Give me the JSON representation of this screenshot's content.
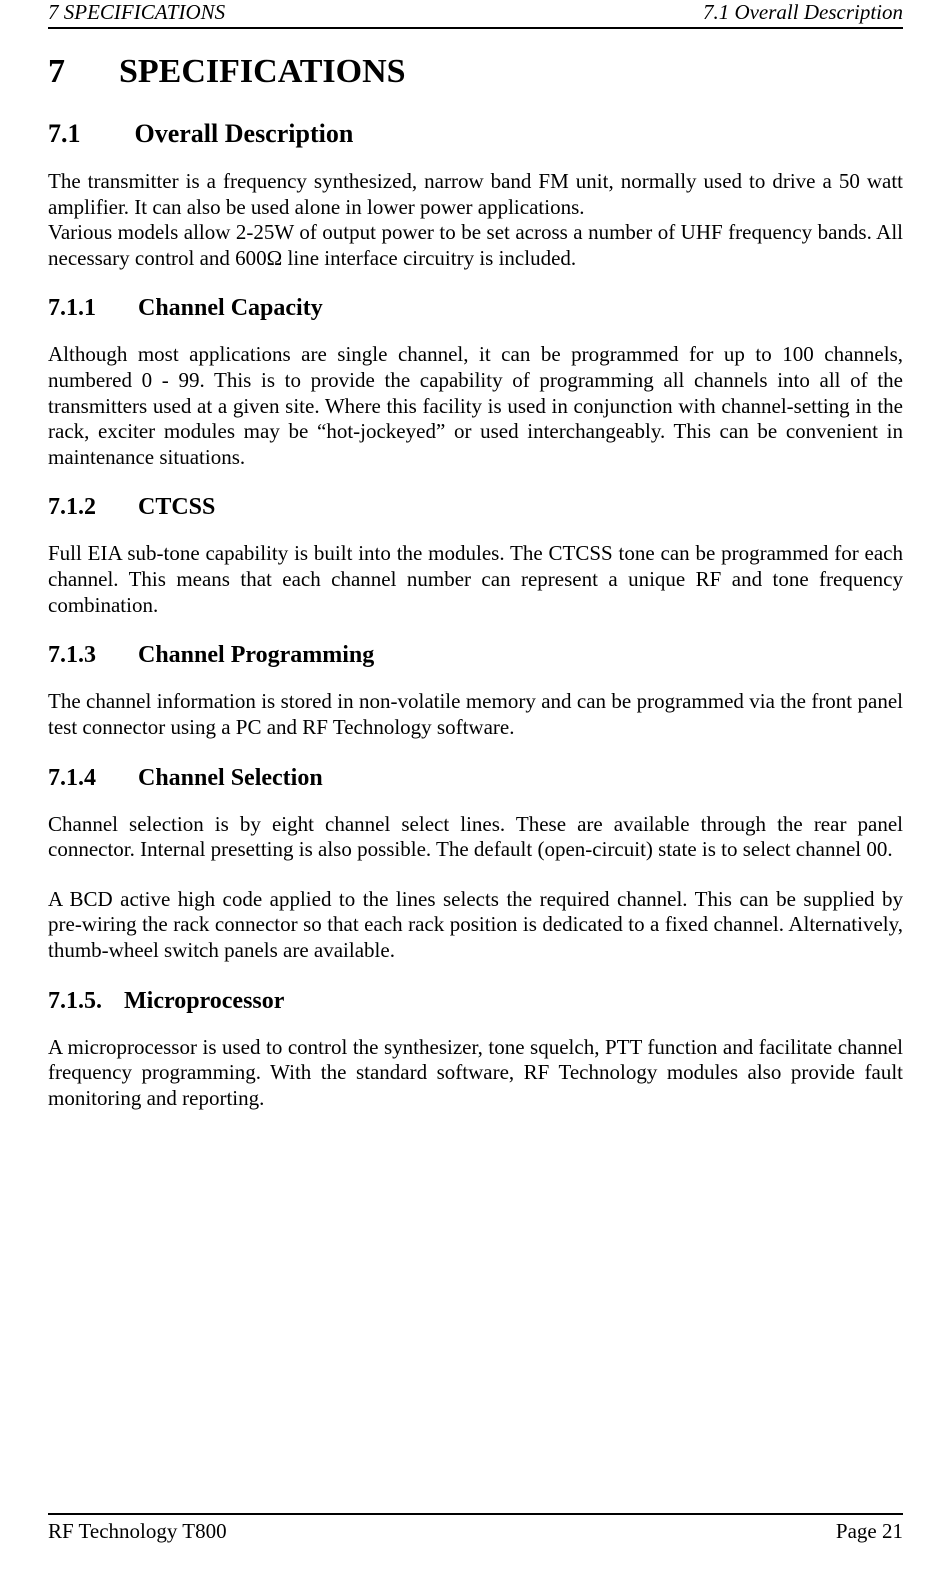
{
  "header": {
    "left": "7     SPECIFICATIONS",
    "right": "7.1  Overall Description"
  },
  "chapter": {
    "number": "7",
    "title": "SPECIFICATIONS"
  },
  "section": {
    "number": "7.1",
    "title": "Overall Description",
    "intro_p1": "The transmitter is a frequency synthesized, narrow band FM unit, normally used to drive a 50 watt amplifier.  It can also be used alone in lower power applications.",
    "intro_p2": "Various models allow 2-25W of output power to be set across a number of UHF frequency bands.  All necessary control and 600Ω line interface circuitry is included."
  },
  "subsections": [
    {
      "number": "7.1.1",
      "title": "Channel Capacity",
      "paragraphs": [
        "Although most applications are single channel, it can be programmed for up to 100 channels, numbered 0 - 99.  This is to provide the capability of programming all channels into all of the transmitters used at a given site. Where this facility is used in conjunction with channel-setting in the rack, exciter modules may be “hot-jockeyed” or used interchangeably. This can be convenient in maintenance situations."
      ]
    },
    {
      "number": "7.1.2",
      "title": "CTCSS",
      "paragraphs": [
        "Full EIA sub-tone capability is built into the modules.   The CTCSS tone can be programmed for each channel.  This means that each channel number can represent a unique RF and tone frequency combination."
      ]
    },
    {
      "number": "7.1.3",
      "title": "Channel Programming",
      "paragraphs": [
        "The channel information is stored in non-volatile memory and can be programmed via the front panel test connector using a PC and RF Technology software."
      ]
    },
    {
      "number": "7.1.4",
      "title": "Channel Selection",
      "paragraphs": [
        "Channel selection is by eight channel select lines.  These are available through the rear panel connector. Internal presetting is also possible. The default (open-circuit) state is to select channel 00.",
        "A BCD active high code applied to the lines selects the required channel.  This can be supplied by pre-wiring the rack connector so that each rack position is dedicated to a fixed channel.  Alternatively, thumb-wheel switch panels are available."
      ]
    },
    {
      "number": "7.1.5.",
      "title": "Microprocessor",
      "paragraphs": [
        "A microprocessor is used to control the synthesizer, tone squelch, PTT function and facilitate channel frequency programming.  With the standard software, RF Technology modules also provide fault monitoring and reporting."
      ]
    }
  ],
  "footer": {
    "left": "RF Technology  T800",
    "right": "Page 21"
  }
}
